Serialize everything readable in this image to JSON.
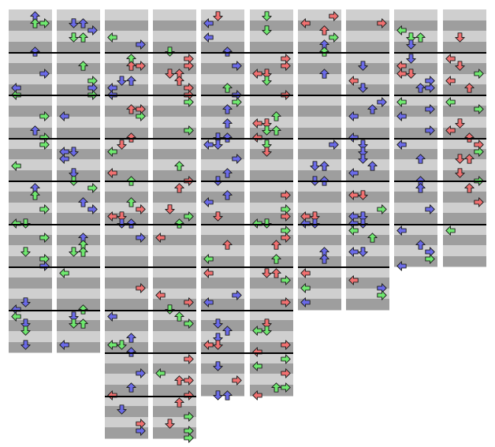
{
  "title": "",
  "colors": {
    "background": "#ffffff",
    "band_light": "#cfcfcf",
    "band_dark": "#9e9e9e",
    "measure_line": "#000000",
    "green_arrow": "#6fe86f",
    "blue_arrow": "#6a6ae8",
    "red_arrow": "#f07070",
    "arrow_outline": "#202020"
  },
  "icons": {
    "left": "left-arrow-icon",
    "down": "down-arrow-icon",
    "up": "up-arrow-icon",
    "right": "right-arrow-icon"
  },
  "chart_data": {
    "type": "step-chart",
    "panels": 5,
    "columns_per_panel": 2,
    "measures_per_column": [
      8,
      10,
      9,
      7,
      6
    ],
    "note_colors": [
      "green",
      "blue",
      "red"
    ],
    "directions": [
      "left",
      "down",
      "up",
      "right"
    ]
  }
}
